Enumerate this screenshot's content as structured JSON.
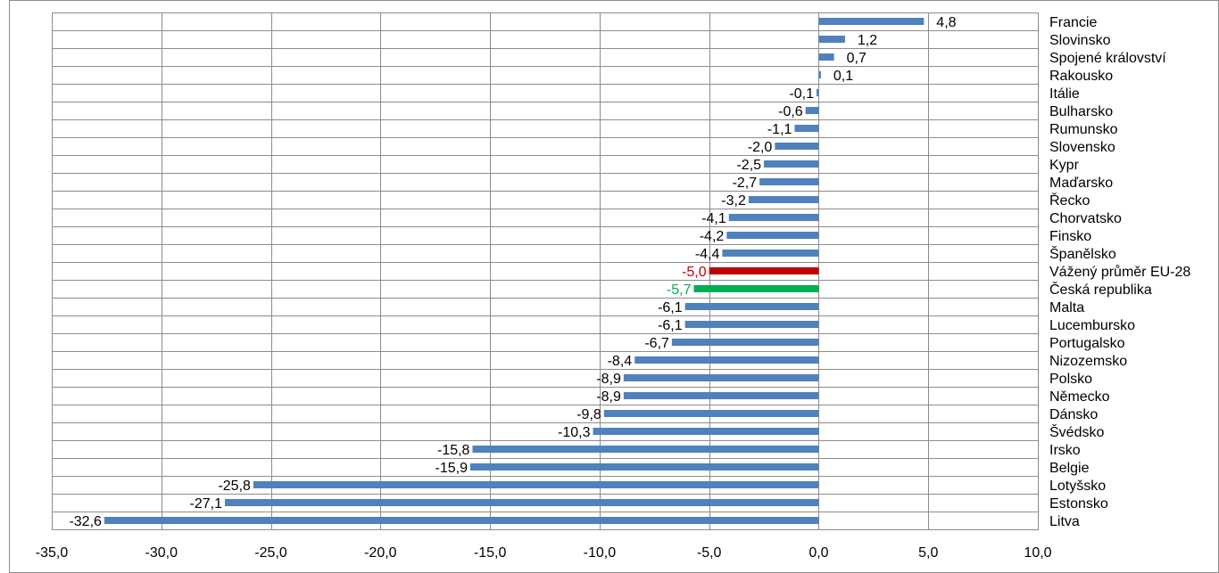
{
  "chart_data": {
    "type": "bar",
    "orientation": "horizontal",
    "title": "",
    "xlabel": "",
    "ylabel": "",
    "xlim": [
      -35,
      10
    ],
    "x_ticks": [
      -35,
      -30,
      -25,
      -20,
      -15,
      -10,
      -5,
      0,
      5,
      10
    ],
    "x_tick_labels": [
      "-35,0",
      "-30,0",
      "-25,0",
      "-20,0",
      "-15,0",
      "-10,0",
      "-5,0",
      "0,0",
      "5,0",
      "10,0"
    ],
    "grid": true,
    "legend": "none",
    "colors": {
      "default": "#4f81bd",
      "highlight_red": "#c00000",
      "highlight_green": "#00b050"
    },
    "categories": [
      "Francie",
      "Slovinsko",
      "Spojené království",
      "Rakousko",
      "Itálie",
      "Bulharsko",
      "Rumunsko",
      "Slovensko",
      "Kypr",
      "Maďarsko",
      "Řecko",
      "Chorvatsko",
      "Finsko",
      "Španělsko",
      "Vážený průměr EU-28",
      "Česká republika",
      "Malta",
      "Lucembursko",
      "Portugalsko",
      "Nizozemsko",
      "Polsko",
      "Německo",
      "Dánsko",
      "Švédsko",
      "Irsko",
      "Belgie",
      "Lotyšsko",
      "Estonsko",
      "Litva"
    ],
    "values": [
      4.8,
      1.2,
      0.7,
      0.1,
      -0.1,
      -0.6,
      -1.1,
      -2.0,
      -2.5,
      -2.7,
      -3.2,
      -4.1,
      -4.2,
      -4.4,
      -5.0,
      -5.7,
      -6.1,
      -6.1,
      -6.7,
      -8.4,
      -8.9,
      -8.9,
      -9.8,
      -10.3,
      -15.8,
      -15.9,
      -25.8,
      -27.1,
      -32.6
    ],
    "value_labels": [
      "4,8",
      "1,2",
      "0,7",
      "0,1",
      "-0,1",
      "-0,6",
      "-1,1",
      "-2,0",
      "-2,5",
      "-2,7",
      "-3,2",
      "-4,1",
      "-4,2",
      "-4,4",
      "-5,0",
      "-5,7",
      "-6,1",
      "-6,1",
      "-6,7",
      "-8,4",
      "-8,9",
      "-8,9",
      "-9,8",
      "-10,3",
      "-15,8",
      "-15,9",
      "-25,8",
      "-27,1",
      "-32,6"
    ],
    "bar_colors": [
      "#4f81bd",
      "#4f81bd",
      "#4f81bd",
      "#4f81bd",
      "#4f81bd",
      "#4f81bd",
      "#4f81bd",
      "#4f81bd",
      "#4f81bd",
      "#4f81bd",
      "#4f81bd",
      "#4f81bd",
      "#4f81bd",
      "#4f81bd",
      "#c00000",
      "#00b050",
      "#4f81bd",
      "#4f81bd",
      "#4f81bd",
      "#4f81bd",
      "#4f81bd",
      "#4f81bd",
      "#4f81bd",
      "#4f81bd",
      "#4f81bd",
      "#4f81bd",
      "#4f81bd",
      "#4f81bd",
      "#4f81bd"
    ],
    "label_colors": [
      "#000000",
      "#000000",
      "#000000",
      "#000000",
      "#000000",
      "#000000",
      "#000000",
      "#000000",
      "#000000",
      "#000000",
      "#000000",
      "#000000",
      "#000000",
      "#000000",
      "#c00000",
      "#00b050",
      "#000000",
      "#000000",
      "#000000",
      "#000000",
      "#000000",
      "#000000",
      "#000000",
      "#000000",
      "#000000",
      "#000000",
      "#000000",
      "#000000",
      "#000000"
    ]
  }
}
